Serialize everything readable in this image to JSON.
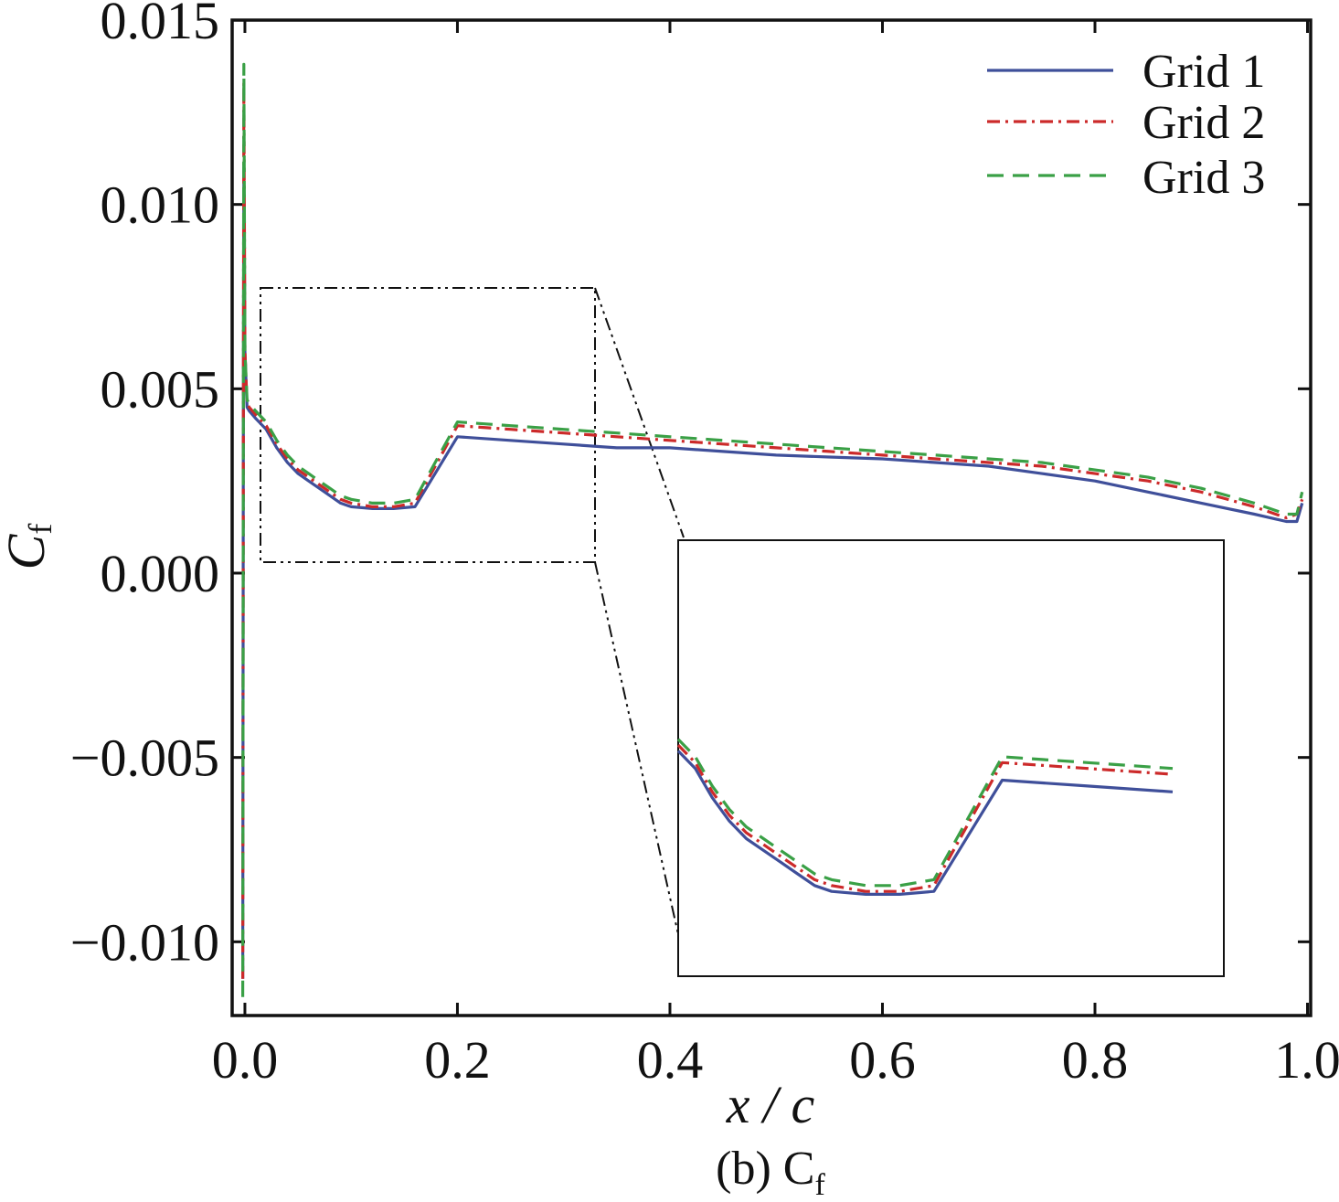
{
  "chart_data": {
    "type": "line",
    "xlabel": "x / c",
    "ylabel": "C",
    "ylabel_subscript": "f",
    "caption": "(b) C",
    "caption_subscript": "f",
    "xlim": [
      -0.012,
      1.003
    ],
    "ylim": [
      -0.012,
      0.015
    ],
    "x_ticks": [
      0.0,
      0.2,
      0.4,
      0.6,
      0.8,
      1.0
    ],
    "x_tick_labels": [
      "0.0",
      "0.2",
      "0.4",
      "0.6",
      "0.8",
      "1.0"
    ],
    "y_ticks": [
      -0.01,
      -0.005,
      0.0,
      0.005,
      0.01,
      0.015
    ],
    "y_tick_labels": [
      "−0.010",
      "−0.005",
      "0.000",
      "0.005",
      "0.010",
      "0.015"
    ],
    "grid": false,
    "legend_position": "top-right",
    "series": [
      {
        "name": "Grid 1",
        "color": "#3f4f9a",
        "dash": "solid",
        "x": [
          -0.002,
          -0.0015,
          -0.001,
          0.0,
          0.002,
          0.004,
          0.01,
          0.02,
          0.03,
          0.04,
          0.05,
          0.06,
          0.07,
          0.08,
          0.09,
          0.1,
          0.12,
          0.14,
          0.16,
          0.2,
          0.25,
          0.3,
          0.35,
          0.4,
          0.45,
          0.5,
          0.55,
          0.6,
          0.65,
          0.7,
          0.75,
          0.8,
          0.85,
          0.9,
          0.95,
          0.98,
          0.99,
          0.995
        ],
        "y": [
          -0.011,
          0.003,
          0.011,
          0.006,
          0.0045,
          0.0044,
          0.0042,
          0.0039,
          0.0034,
          0.003,
          0.0027,
          0.0025,
          0.0023,
          0.0021,
          0.0019,
          0.0018,
          0.00175,
          0.00175,
          0.0018,
          0.0037,
          0.0036,
          0.0035,
          0.0034,
          0.0034,
          0.0033,
          0.0032,
          0.00315,
          0.0031,
          0.003,
          0.0029,
          0.0027,
          0.0025,
          0.0022,
          0.0019,
          0.0016,
          0.0014,
          0.0014,
          0.0019
        ]
      },
      {
        "name": "Grid 2",
        "color": "#cc2a2a",
        "dash": "dash-dot",
        "x": [
          -0.002,
          -0.0015,
          -0.001,
          0.0,
          0.002,
          0.004,
          0.01,
          0.02,
          0.03,
          0.04,
          0.05,
          0.06,
          0.07,
          0.08,
          0.09,
          0.1,
          0.12,
          0.14,
          0.16,
          0.2,
          0.25,
          0.3,
          0.35,
          0.4,
          0.45,
          0.5,
          0.55,
          0.6,
          0.65,
          0.7,
          0.75,
          0.8,
          0.85,
          0.9,
          0.95,
          0.98,
          0.99,
          0.995
        ],
        "y": [
          -0.011,
          0.003,
          0.0133,
          0.006,
          0.0046,
          0.0045,
          0.0043,
          0.004,
          0.0035,
          0.0031,
          0.0028,
          0.0026,
          0.0024,
          0.0022,
          0.002,
          0.0019,
          0.0018,
          0.0018,
          0.0019,
          0.004,
          0.0039,
          0.0038,
          0.0037,
          0.0036,
          0.0035,
          0.0034,
          0.0033,
          0.0032,
          0.0031,
          0.003,
          0.0029,
          0.0027,
          0.0025,
          0.0022,
          0.0018,
          0.0015,
          0.0016,
          0.002
        ]
      },
      {
        "name": "Grid 3",
        "color": "#3aa046",
        "dash": "dashed",
        "x": [
          -0.002,
          -0.0015,
          -0.001,
          0.0,
          0.002,
          0.004,
          0.01,
          0.02,
          0.03,
          0.04,
          0.05,
          0.06,
          0.07,
          0.08,
          0.09,
          0.1,
          0.12,
          0.14,
          0.16,
          0.2,
          0.25,
          0.3,
          0.35,
          0.4,
          0.45,
          0.5,
          0.55,
          0.6,
          0.65,
          0.7,
          0.75,
          0.8,
          0.85,
          0.9,
          0.95,
          0.98,
          0.99,
          0.995
        ],
        "y": [
          -0.0115,
          0.003,
          0.0138,
          0.006,
          0.0047,
          0.0046,
          0.0044,
          0.0041,
          0.0036,
          0.0032,
          0.0029,
          0.0027,
          0.0025,
          0.0023,
          0.0021,
          0.002,
          0.0019,
          0.0019,
          0.002,
          0.0041,
          0.004,
          0.0039,
          0.0038,
          0.0037,
          0.0036,
          0.0035,
          0.0034,
          0.0033,
          0.0032,
          0.0031,
          0.003,
          0.0028,
          0.0026,
          0.0023,
          0.0019,
          0.0016,
          0.0016,
          0.0022
        ]
      }
    ]
  }
}
